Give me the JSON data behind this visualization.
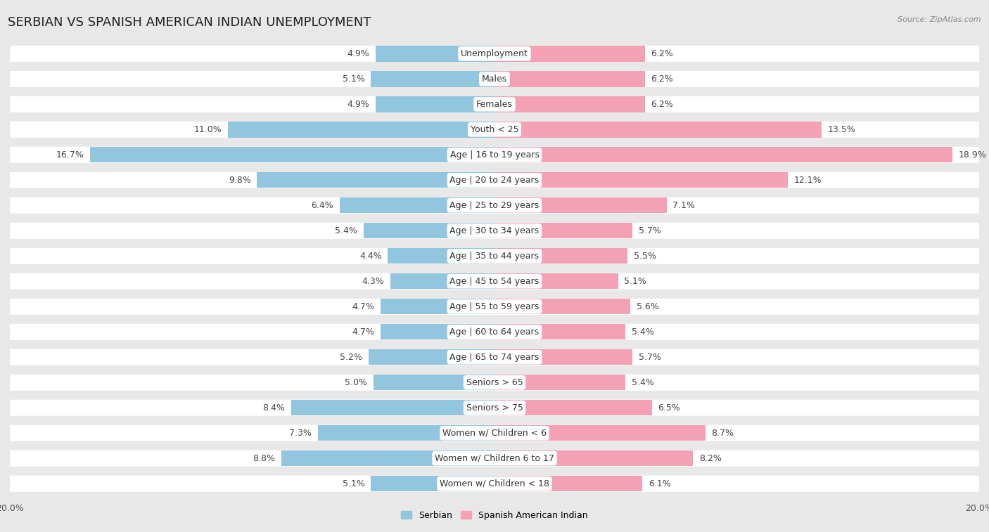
{
  "title": "SERBIAN VS SPANISH AMERICAN INDIAN UNEMPLOYMENT",
  "source": "Source: ZipAtlas.com",
  "categories": [
    "Unemployment",
    "Males",
    "Females",
    "Youth < 25",
    "Age | 16 to 19 years",
    "Age | 20 to 24 years",
    "Age | 25 to 29 years",
    "Age | 30 to 34 years",
    "Age | 35 to 44 years",
    "Age | 45 to 54 years",
    "Age | 55 to 59 years",
    "Age | 60 to 64 years",
    "Age | 65 to 74 years",
    "Seniors > 65",
    "Seniors > 75",
    "Women w/ Children < 6",
    "Women w/ Children 6 to 17",
    "Women w/ Children < 18"
  ],
  "serbian": [
    4.9,
    5.1,
    4.9,
    11.0,
    16.7,
    9.8,
    6.4,
    5.4,
    4.4,
    4.3,
    4.7,
    4.7,
    5.2,
    5.0,
    8.4,
    7.3,
    8.8,
    5.1
  ],
  "spanish_american_indian": [
    6.2,
    6.2,
    6.2,
    13.5,
    18.9,
    12.1,
    7.1,
    5.7,
    5.5,
    5.1,
    5.6,
    5.4,
    5.7,
    5.4,
    6.5,
    8.7,
    8.2,
    6.1
  ],
  "serbian_color": "#92c5de",
  "spanish_color": "#f4a0b5",
  "serbian_label": "Serbian",
  "spanish_label": "Spanish American Indian",
  "axis_max": 20.0,
  "bg_color": "#e8e8e8",
  "row_bg_color": "#ffffff",
  "gap_color": "#e8e8e8",
  "title_fontsize": 13,
  "label_fontsize": 9,
  "value_fontsize": 9,
  "tick_fontsize": 9
}
